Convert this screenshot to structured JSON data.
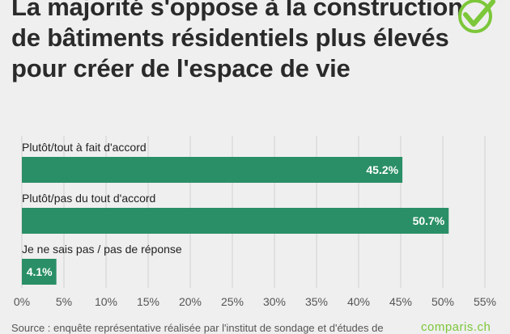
{
  "title": "La majorité s'oppose à la construction de bâtiments résidentiels plus élevés pour créer de l'espace de vie",
  "colors": {
    "bar": "#2a8f66",
    "grid": "#d0d0d0",
    "check": "#7cc73a",
    "background": "#efefef"
  },
  "icons": {
    "logo": "checkmark-circle-icon"
  },
  "footer": {
    "source": "Source : enquête représentative réalisée par l'institut de sondage et d'études de",
    "brand": "comparis.ch"
  },
  "chart_data": {
    "type": "bar",
    "orientation": "horizontal",
    "categories": [
      "Plutôt/tout à fait d'accord",
      "Plutôt/pas du tout d'accord",
      "Je ne sais pas / pas de réponse"
    ],
    "values": [
      45.2,
      50.7,
      4.1
    ],
    "value_labels": [
      "45.2%",
      "50.7%",
      "4.1%"
    ],
    "xlim": [
      0,
      55
    ],
    "xticks": [
      0,
      5,
      10,
      15,
      20,
      25,
      30,
      35,
      40,
      45,
      50,
      55
    ],
    "xtick_labels": [
      "0%",
      "5%",
      "10%",
      "15%",
      "20%",
      "25%",
      "30%",
      "35%",
      "40%",
      "45%",
      "50%",
      "55%"
    ],
    "grid": true,
    "legend": "none"
  }
}
